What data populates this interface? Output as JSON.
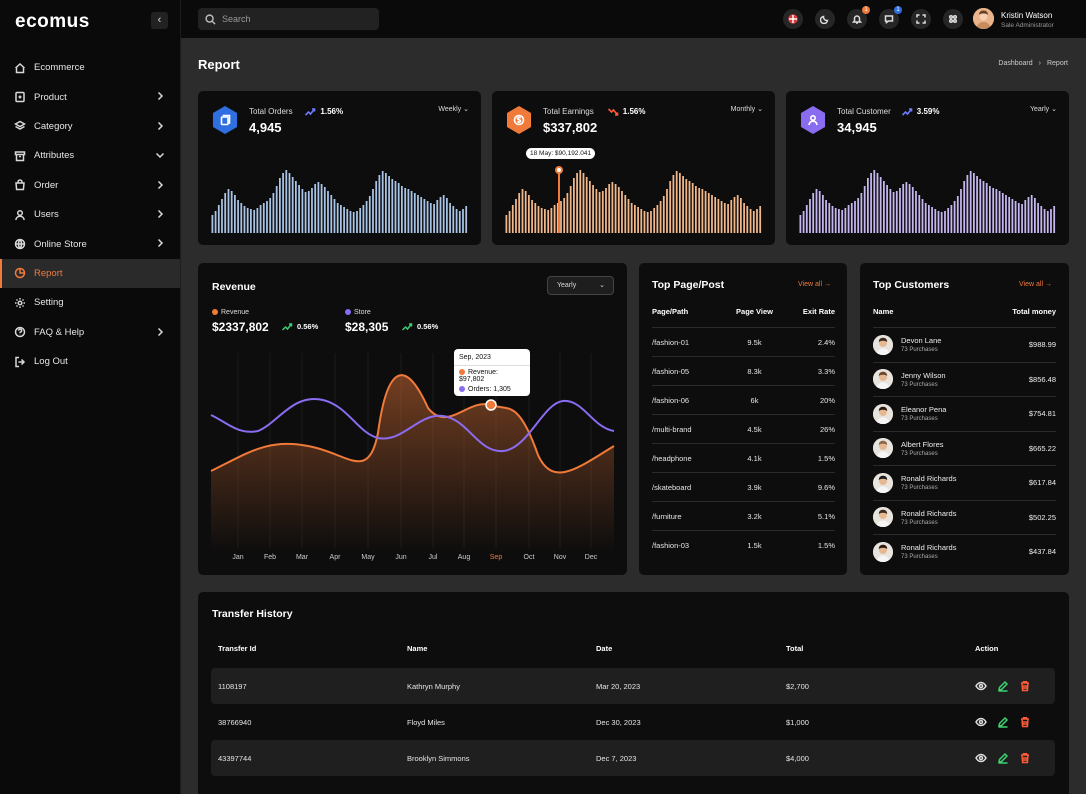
{
  "app": {
    "logo": "ecomus",
    "collapse_icon": "chevron-left-icon"
  },
  "sidebar": {
    "items": [
      {
        "label": "Ecommerce",
        "icon": "home-icon",
        "chevron": ""
      },
      {
        "label": "Product",
        "icon": "product-icon",
        "chevron": "right"
      },
      {
        "label": "Category",
        "icon": "layers-icon",
        "chevron": "right"
      },
      {
        "label": "Attributes",
        "icon": "box-icon",
        "chevron": "down"
      },
      {
        "label": "Order",
        "icon": "bag-icon",
        "chevron": "right"
      },
      {
        "label": "Users",
        "icon": "user-icon",
        "chevron": "right"
      },
      {
        "label": "Online Store",
        "icon": "globe-icon",
        "chevron": "right"
      },
      {
        "label": "Report",
        "icon": "pie-icon",
        "chevron": "",
        "active": true
      },
      {
        "label": "Setting",
        "icon": "gear-icon",
        "chevron": ""
      },
      {
        "label": "FAQ & Help",
        "icon": "help-icon",
        "chevron": "right"
      },
      {
        "label": "Log Out",
        "icon": "logout-icon",
        "chevron": ""
      }
    ]
  },
  "topbar": {
    "search_placeholder": "Search",
    "notifications_badge": "1",
    "messages_badge": "1",
    "user_name": "Kristin Watson",
    "user_role": "Sale Administrator"
  },
  "page": {
    "title": "Report",
    "breadcrumb": [
      "Dashboard",
      "Report"
    ]
  },
  "stats": [
    {
      "label": "Total Orders",
      "change": "1.56%",
      "value": "4,945",
      "period": "Weekly",
      "color": "#2f6fe0",
      "bar_color": "#a9c4e6",
      "trend": "up"
    },
    {
      "label": "Total Earnings",
      "change": "1.56%",
      "value": "$337,802",
      "period": "Monthly",
      "color": "#f07a3a",
      "bar_color": "#f2b88a",
      "trend": "down",
      "tooltip": "18 May: $90,192.041"
    },
    {
      "label": "Total Customer",
      "change": "3.59%",
      "value": "34,945",
      "period": "Yearly",
      "color": "#8a6cf0",
      "bar_color": "#c6b7f0",
      "trend": "up"
    }
  ],
  "revenue": {
    "title": "Revenue",
    "select": "Yearly",
    "series1_label": "Revenue",
    "series1_value": "$2337,802",
    "series1_change": "0.56%",
    "series2_label": "Store",
    "series2_value": "$28,305",
    "series2_change": "0.56%",
    "tooltip_title": "Sep, 2023",
    "tooltip_revenue": "Revenue: $97,802",
    "tooltip_orders": "Orders: 1,305",
    "months": [
      "Jan",
      "Feb",
      "Mar",
      "Apr",
      "May",
      "Jun",
      "Jul",
      "Aug",
      "Sep",
      "Oct",
      "Nov",
      "Dec"
    ]
  },
  "top_page": {
    "title": "Top Page/Post",
    "view_all": "View all",
    "headers": [
      "Page/Path",
      "Page View",
      "Exit Rate"
    ],
    "rows": [
      [
        "/fashion-01",
        "9.5k",
        "2.4%"
      ],
      [
        "/fashion-05",
        "8.3k",
        "3.3%"
      ],
      [
        "/fashion-06",
        "6k",
        "20%"
      ],
      [
        "/multi-brand",
        "4.5k",
        "26%"
      ],
      [
        "/headphone",
        "4.1k",
        "1.5%"
      ],
      [
        "/skateboard",
        "3.9k",
        "9.6%"
      ],
      [
        "/furniture",
        "3.2k",
        "5.1%"
      ],
      [
        "/fashion-03",
        "1.5k",
        "1.5%"
      ]
    ]
  },
  "top_customers": {
    "title": "Top Customers",
    "view_all": "View all",
    "headers": [
      "Name",
      "Total money"
    ],
    "rows": [
      {
        "name": "Devon Lane",
        "sub": "73 Purchases",
        "money": "$988.99"
      },
      {
        "name": "Jenny Wilson",
        "sub": "73 Purchases",
        "money": "$856.48"
      },
      {
        "name": "Eleanor Pena",
        "sub": "73 Purchases",
        "money": "$754.81"
      },
      {
        "name": "Albert Flores",
        "sub": "73 Purchases",
        "money": "$665.22"
      },
      {
        "name": "Ronald Richards",
        "sub": "73 Purchases",
        "money": "$617.84"
      },
      {
        "name": "Ronald Richards",
        "sub": "73 Purchases",
        "money": "$502.25"
      },
      {
        "name": "Ronald Richards",
        "sub": "73 Purchases",
        "money": "$437.84"
      }
    ]
  },
  "transfer": {
    "title": "Transfer History",
    "headers": [
      "Transfer Id",
      "Name",
      "Date",
      "Total",
      "Action"
    ],
    "rows": [
      [
        "1108197",
        "Kathryn Murphy",
        "Mar 20, 2023",
        "$2,700"
      ],
      [
        "38766940",
        "Floyd Miles",
        "Dec 30, 2023",
        "$1,000"
      ],
      [
        "43397744",
        "Brooklyn Simmons",
        "Dec 7, 2023",
        "$4,000"
      ]
    ]
  }
}
